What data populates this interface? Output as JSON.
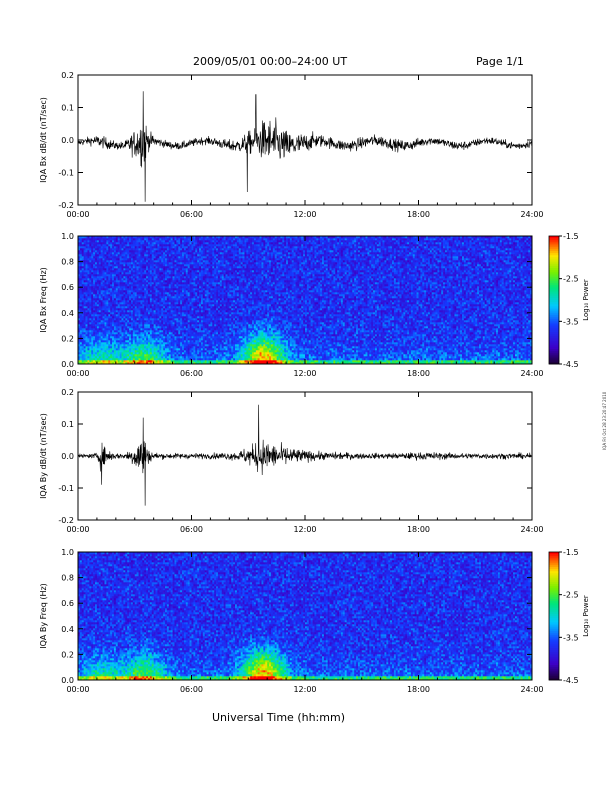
{
  "header": {
    "title": "2009/05/01  00:00–24:00 UT",
    "page": "Page 1/1"
  },
  "side_stamp": "IQA Fri Oct 28 23:20:47 2010",
  "chart_data": [
    {
      "type": "line",
      "ylabel": "IQA Bx dB/dt (nT/sec)",
      "ylim": [
        -0.2,
        0.2
      ],
      "yticks": [
        "0.2",
        "0.1",
        "0.0",
        "-0.1",
        "-0.2"
      ],
      "xlim": [
        0,
        24
      ],
      "xticks": [
        "00:00",
        "06:00",
        "12:00",
        "18:00",
        "24:00"
      ],
      "series": [
        {
          "x": [
            0,
            0.5,
            1,
            1.5,
            2,
            2.5,
            3,
            3.3,
            3.5,
            3.7,
            4,
            4.5,
            5,
            6,
            7,
            8,
            8.5,
            9,
            9.3,
            9.6,
            10,
            10.5,
            11,
            12,
            13,
            14,
            15,
            16,
            17,
            18,
            19,
            20,
            21,
            22,
            23,
            24
          ],
          "amplitude": [
            0.015,
            0.02,
            0.03,
            0.03,
            0.02,
            0.025,
            0.07,
            0.12,
            0.14,
            0.05,
            0.03,
            0.02,
            0.02,
            0.02,
            0.02,
            0.03,
            0.035,
            0.06,
            0.06,
            0.09,
            0.12,
            0.11,
            0.08,
            0.05,
            0.03,
            0.03,
            0.03,
            0.03,
            0.03,
            0.025,
            0.02,
            0.025,
            0.02,
            0.02,
            0.02,
            0.02
          ],
          "spikes": [
            [
              3.55,
              -0.19
            ],
            [
              3.45,
              0.15
            ],
            [
              8.95,
              -0.16
            ],
            [
              9.4,
              0.14
            ]
          ]
        }
      ]
    },
    {
      "type": "heatmap",
      "ylabel": "IQA Bx Freq (Hz)",
      "ylim": [
        0,
        1.0
      ],
      "yticks": [
        "1.0",
        "0.8",
        "0.6",
        "0.4",
        "0.2",
        "0.0"
      ],
      "xlim": [
        0,
        24
      ],
      "xticks": [
        "00:00",
        "06:00",
        "12:00",
        "18:00",
        "24:00"
      ],
      "colorbar": {
        "label": "Log₁₀ Power",
        "range": [
          -4.5,
          -1.5
        ],
        "ticks": [
          "-1.5",
          "-2.5",
          "-3.5",
          "-4.5"
        ]
      },
      "hotspots": [
        [
          9.8,
          0.04,
          1.0
        ],
        [
          3.5,
          0.02,
          0.6
        ],
        [
          1.2,
          0.02,
          0.4
        ]
      ]
    },
    {
      "type": "line",
      "ylabel": "IQA By dB/dt (nT/sec)",
      "ylim": [
        -0.2,
        0.2
      ],
      "yticks": [
        "0.2",
        "0.1",
        "0.0",
        "-0.1",
        "-0.2"
      ],
      "xlim": [
        0,
        24
      ],
      "xticks": [
        "00:00",
        "06:00",
        "12:00",
        "18:00",
        "24:00"
      ],
      "series": [
        {
          "x": [
            0,
            0.5,
            1,
            1.2,
            1.5,
            2,
            2.5,
            3,
            3.3,
            3.5,
            3.7,
            4,
            4.5,
            5,
            6,
            7,
            8,
            8.5,
            9,
            9.3,
            9.6,
            10,
            10.5,
            11,
            12,
            13,
            14,
            15,
            16,
            17,
            18,
            19,
            20,
            21,
            22,
            23,
            24
          ],
          "amplitude": [
            0.01,
            0.01,
            0.015,
            0.07,
            0.04,
            0.015,
            0.015,
            0.06,
            0.11,
            0.13,
            0.04,
            0.02,
            0.015,
            0.015,
            0.015,
            0.015,
            0.02,
            0.025,
            0.05,
            0.06,
            0.09,
            0.08,
            0.06,
            0.05,
            0.03,
            0.02,
            0.02,
            0.015,
            0.015,
            0.015,
            0.02,
            0.02,
            0.015,
            0.015,
            0.015,
            0.015,
            0.015
          ],
          "spikes": [
            [
              3.55,
              -0.155
            ],
            [
              3.45,
              0.12
            ],
            [
              9.55,
              0.16
            ],
            [
              1.25,
              -0.09
            ]
          ]
        }
      ]
    },
    {
      "type": "heatmap",
      "ylabel": "IQA By Freq (Hz)",
      "ylim": [
        0,
        1.0
      ],
      "yticks": [
        "1.0",
        "0.8",
        "0.6",
        "0.4",
        "0.2",
        "0.0"
      ],
      "xlim": [
        0,
        24
      ],
      "xticks": [
        "00:00",
        "06:00",
        "12:00",
        "18:00",
        "24:00"
      ],
      "colorbar": {
        "label": "Log₁₀ Power",
        "range": [
          -4.5,
          -1.5
        ],
        "ticks": [
          "-1.5",
          "-2.5",
          "-3.5",
          "-4.5"
        ]
      },
      "hotspots": [
        [
          9.8,
          0.05,
          1.0
        ],
        [
          3.5,
          0.03,
          0.6
        ],
        [
          1.2,
          0.02,
          0.4
        ]
      ]
    }
  ],
  "xlabel": "Universal Time (hh:mm)"
}
